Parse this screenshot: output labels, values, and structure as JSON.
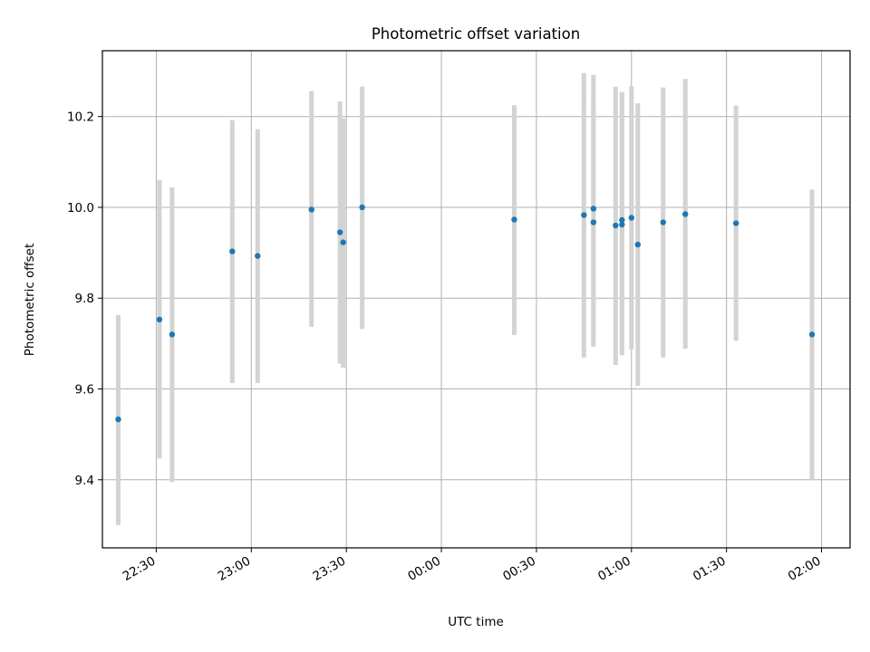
{
  "chart_data": {
    "type": "scatter",
    "title": "Photometric offset variation",
    "xlabel": "UTC time",
    "ylabel": "Photometric offset",
    "x_unit": "UTC clock time (HH:MM), spanning midnight",
    "xlim": [
      "22:13",
      "02:09"
    ],
    "ylim": [
      9.25,
      10.345
    ],
    "grid": true,
    "x_ticks": [
      "22:30",
      "23:00",
      "23:30",
      "00:00",
      "00:30",
      "01:00",
      "01:30",
      "02:00"
    ],
    "y_ticks": [
      9.4,
      9.6,
      9.8,
      10.0,
      10.2
    ],
    "y_tick_labels": [
      "9.4",
      "9.6",
      "9.8",
      "10.0",
      "10.2"
    ],
    "colors": {
      "point": "#1f77b4",
      "errorbar": "#d3d3d3",
      "grid": "#b0b0b0"
    },
    "points": [
      {
        "t": "22:18",
        "y": 9.533,
        "lo": 9.3,
        "hi": 9.763
      },
      {
        "t": "22:31",
        "y": 9.753,
        "lo": 9.447,
        "hi": 10.06
      },
      {
        "t": "22:35",
        "y": 9.72,
        "lo": 9.395,
        "hi": 10.044
      },
      {
        "t": "22:54",
        "y": 9.903,
        "lo": 9.613,
        "hi": 10.192
      },
      {
        "t": "23:02",
        "y": 9.893,
        "lo": 9.613,
        "hi": 10.172
      },
      {
        "t": "23:19",
        "y": 9.995,
        "lo": 9.737,
        "hi": 10.256
      },
      {
        "t": "23:28",
        "y": 9.945,
        "lo": 9.656,
        "hi": 10.233
      },
      {
        "t": "23:29",
        "y": 9.923,
        "lo": 9.647,
        "hi": 10.196
      },
      {
        "t": "23:35",
        "y": 10.0,
        "lo": 9.732,
        "hi": 10.266
      },
      {
        "t": "00:23",
        "y": 9.973,
        "lo": 9.719,
        "hi": 10.225
      },
      {
        "t": "00:45",
        "y": 9.983,
        "lo": 9.669,
        "hi": 10.296
      },
      {
        "t": "00:48",
        "y": 9.967,
        "lo": 9.693,
        "hi": 10.241
      },
      {
        "t": "00:48",
        "y": 9.997,
        "lo": 9.701,
        "hi": 10.292
      },
      {
        "t": "00:55",
        "y": 9.96,
        "lo": 9.653,
        "hi": 10.266
      },
      {
        "t": "00:57",
        "y": 9.962,
        "lo": 9.674,
        "hi": 10.25
      },
      {
        "t": "00:57",
        "y": 9.972,
        "lo": 9.689,
        "hi": 10.254
      },
      {
        "t": "01:00",
        "y": 9.977,
        "lo": 9.687,
        "hi": 10.267
      },
      {
        "t": "01:02",
        "y": 9.918,
        "lo": 9.607,
        "hi": 10.229
      },
      {
        "t": "01:10",
        "y": 9.967,
        "lo": 9.669,
        "hi": 10.264
      },
      {
        "t": "01:17",
        "y": 9.985,
        "lo": 9.689,
        "hi": 10.283
      },
      {
        "t": "01:33",
        "y": 9.965,
        "lo": 9.706,
        "hi": 10.224
      },
      {
        "t": "01:57",
        "y": 9.72,
        "lo": 9.4,
        "hi": 10.039
      }
    ]
  }
}
